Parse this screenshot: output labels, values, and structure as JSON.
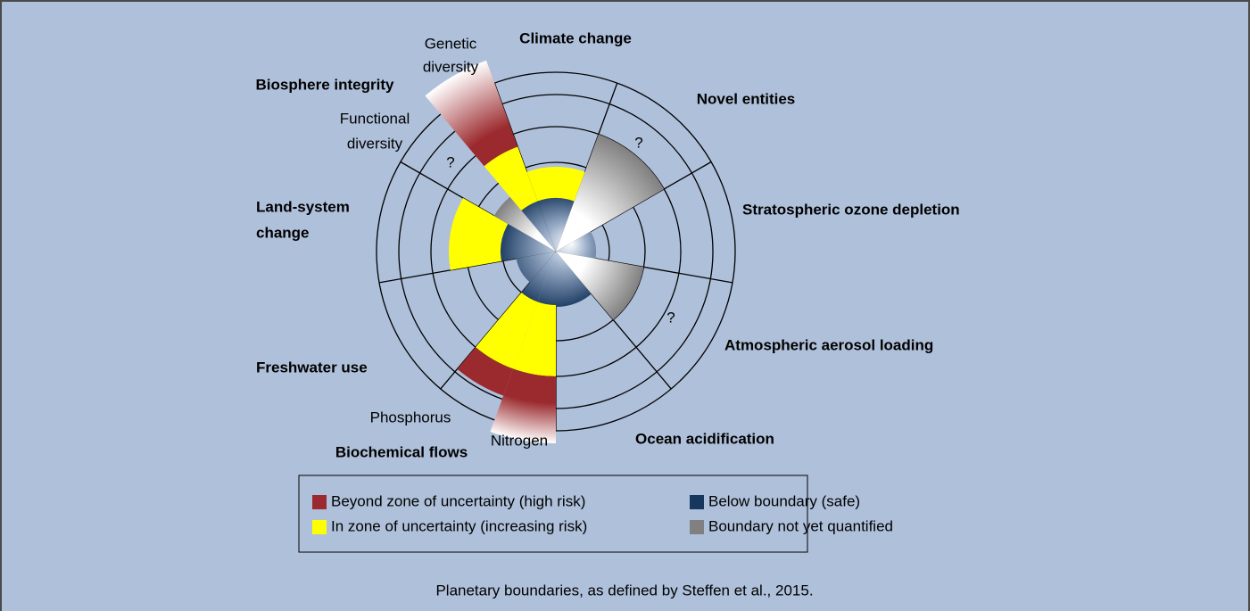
{
  "title_labels": {
    "climate": "Climate change",
    "novel": "Novel entities",
    "ozone": "Stratospheric ozone depletion",
    "aerosol": "Atmospheric aerosol loading",
    "ocean": "Ocean acidification",
    "biochemical": "Biochemical flows",
    "freshwater": "Freshwater use",
    "land": [
      "Land-system",
      "change"
    ],
    "biosphere": "Biosphere integrity"
  },
  "sub_labels": {
    "genetic": [
      "Genetic",
      "diversity"
    ],
    "functional": [
      "Functional",
      "diversity"
    ],
    "phosphorus": "Phosphorus",
    "nitrogen": "Nitrogen"
  },
  "unknown_marks": [
    "?",
    "?",
    "?"
  ],
  "legend": [
    {
      "label": "Beyond zone of uncertainty (high risk)",
      "color": "#9b2a2e"
    },
    {
      "label": "In zone of uncertainty (increasing risk)",
      "color": "#ffff00"
    },
    {
      "label": "Below boundary (safe)",
      "color": "#17375e"
    },
    {
      "label": "Boundary not yet quantified",
      "color": "#808080"
    }
  ],
  "caption": "Planetary boundaries, as defined by Steffen et al., 2015."
}
